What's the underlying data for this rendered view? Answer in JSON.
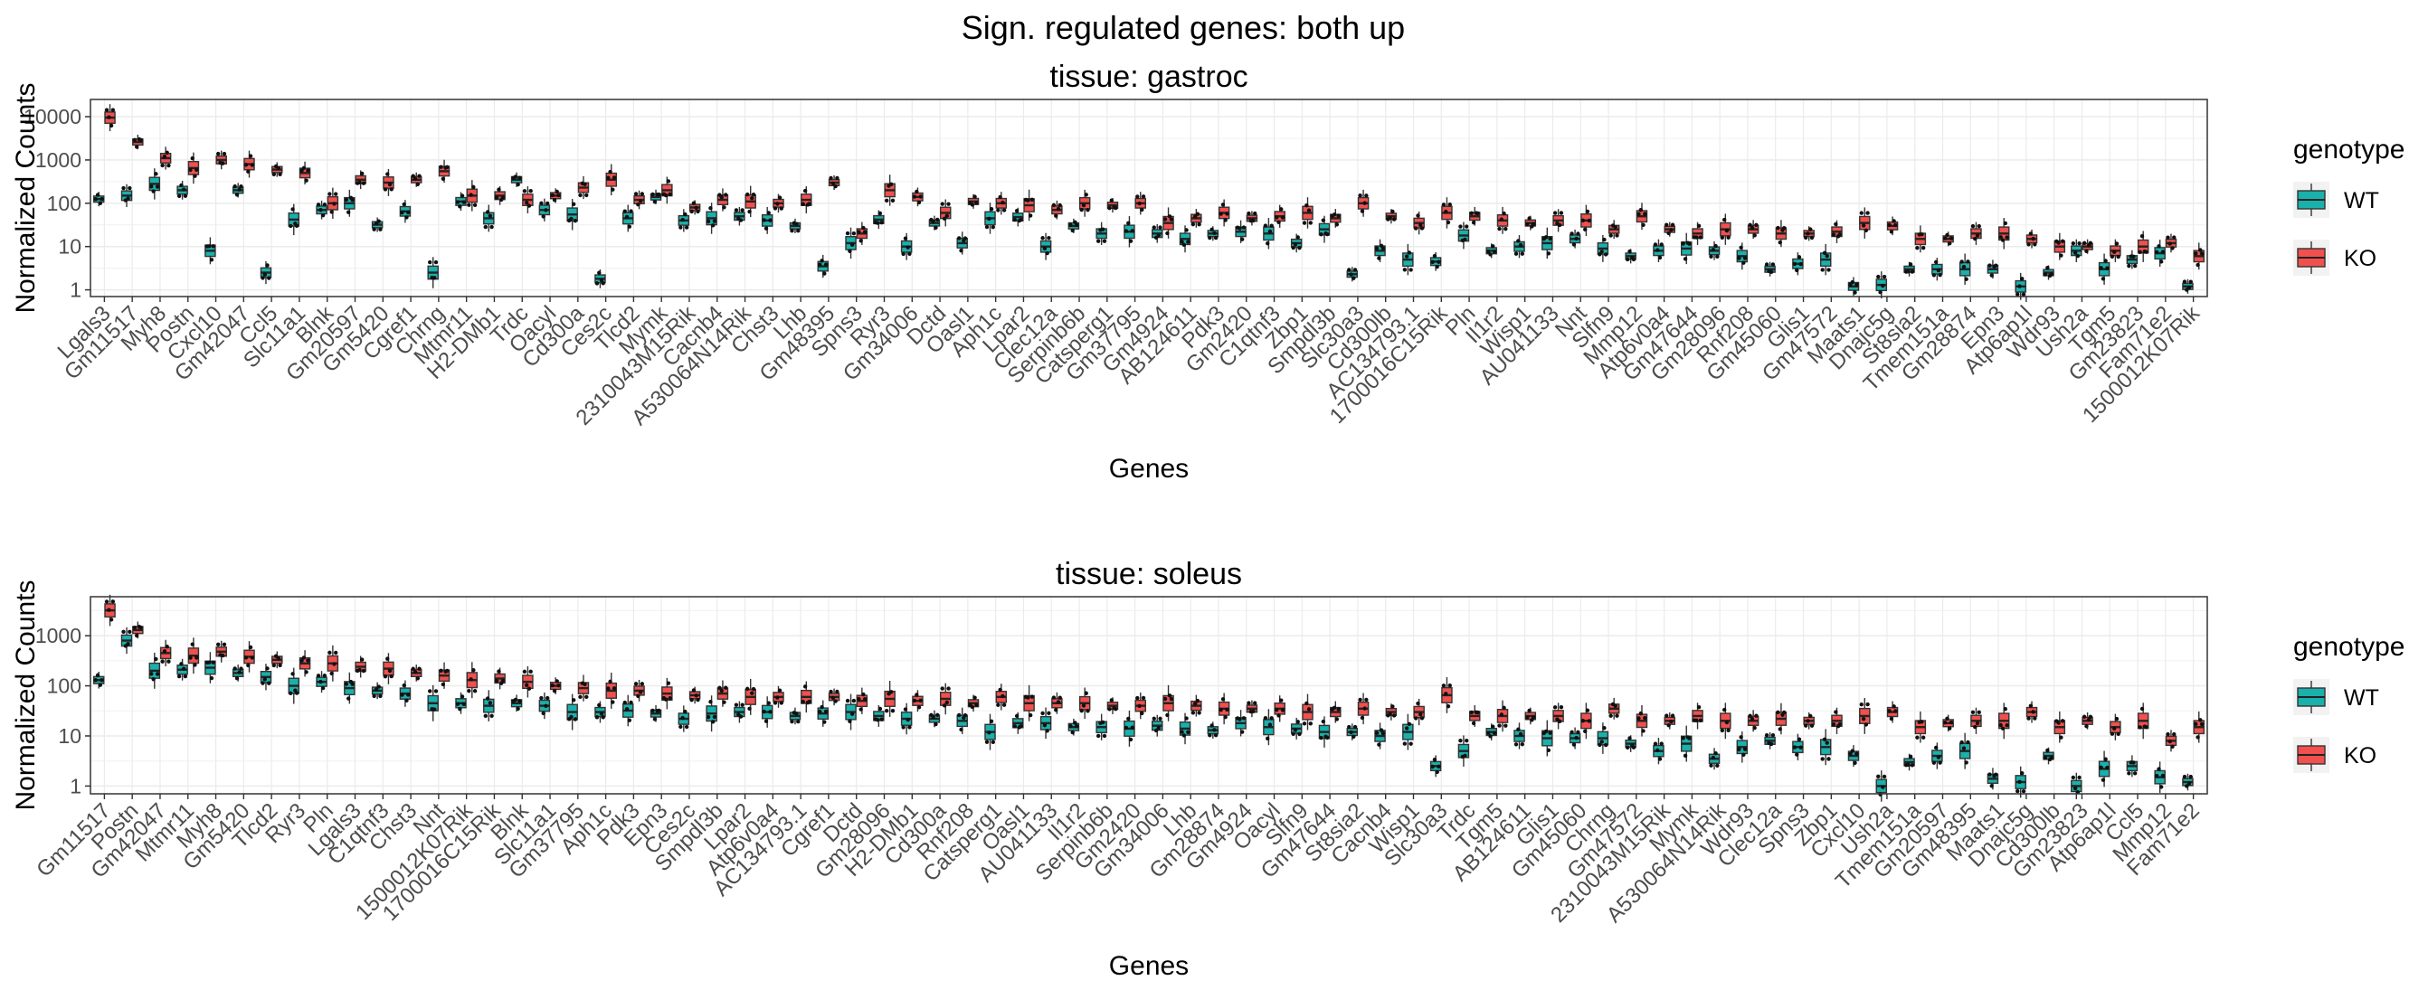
{
  "title": "Sign. regulated genes: both up",
  "legend": {
    "title": "genotype",
    "placement": "right",
    "items": [
      {
        "label": "WT",
        "color": "#1ab0ab"
      },
      {
        "label": "KO",
        "color": "#f0504e"
      }
    ]
  },
  "chart_data": [
    {
      "type": "boxplot",
      "subtitle": "tissue: gastroc",
      "xlabel": "Genes",
      "ylabel": "Normalized Counts",
      "yscale": "log10",
      "ylim": [
        0.7,
        25000
      ],
      "yticks": [
        1,
        10,
        100,
        1000,
        10000
      ],
      "yticklabels": [
        "1",
        "10",
        "100",
        "1000",
        "10000"
      ],
      "grid": true,
      "categories": [
        "Lgals3",
        "Gm11517",
        "Myh8",
        "Postn",
        "Cxcl10",
        "Gm42047",
        "Ccl5",
        "Slc11a1",
        "Blnk",
        "Gm20597",
        "Gm5420",
        "Cgref1",
        "Chrng",
        "Mtmr11",
        "H2-DMb1",
        "Trdc",
        "Oacyl",
        "Cd300a",
        "Ces2c",
        "Tlcd2",
        "Mymk",
        "2310043M15Rik",
        "Cacnb4",
        "A530064N14Rik",
        "Chst3",
        "Lhb",
        "Gm48395",
        "Spns3",
        "Ryr3",
        "Gm34006",
        "Dctd",
        "Oasl1",
        "Aph1c",
        "Lpar2",
        "Clec12a",
        "Serpinb6b",
        "Catsperg1",
        "Gm37795",
        "Gm4924",
        "AB124611",
        "Pdk3",
        "Gm2420",
        "C1qtnf3",
        "Zbp1",
        "Smpdl3b",
        "Slc30a3",
        "Cd300lb",
        "AC134793.1",
        "1700016C15Rik",
        "Pln",
        "Il1r2",
        "Wisp1",
        "AU041133",
        "Nnt",
        "Slfn9",
        "Mmp12",
        "Atp6v0a4",
        "Gm47644",
        "Gm28096",
        "Rnf208",
        "Gm45060",
        "Glis1",
        "Gm47572",
        "Maats1",
        "Dnajc5g",
        "St8sia2",
        "Tmem151a",
        "Gm28874",
        "Epn3",
        "Atp6ap1l",
        "Wdr93",
        "Ush2a",
        "Tgm5",
        "Gm23823",
        "Fam71e2",
        "1500012K07Rik"
      ],
      "series": [
        {
          "name": "WT",
          "values": [
            125,
            150,
            280,
            200,
            8,
            200,
            2.5,
            42,
            70,
            100,
            32,
            65,
            2.5,
            110,
            45,
            350,
            70,
            55,
            1.8,
            45,
            140,
            40,
            45,
            50,
            40,
            30,
            3.5,
            12,
            42,
            10,
            35,
            12,
            45,
            48,
            10,
            30,
            20,
            22,
            20,
            15,
            20,
            22,
            20,
            12,
            25,
            2.3,
            8,
            5,
            4.5,
            18,
            8,
            10,
            12,
            15,
            9,
            6,
            8,
            9,
            8,
            6,
            3,
            4,
            5,
            1.2,
            1.3,
            3,
            3,
            3,
            3,
            1.2,
            2.5,
            8,
            3,
            5,
            7,
            1.2
          ]
        },
        {
          "name": "KO",
          "values": [
            9500,
            2600,
            1100,
            650,
            1000,
            800,
            600,
            500,
            100,
            350,
            300,
            350,
            550,
            150,
            150,
            120,
            150,
            230,
            350,
            120,
            200,
            80,
            120,
            110,
            100,
            120,
            300,
            20,
            200,
            140,
            60,
            110,
            100,
            90,
            70,
            100,
            90,
            100,
            35,
            45,
            60,
            45,
            50,
            60,
            45,
            100,
            50,
            35,
            60,
            50,
            40,
            35,
            40,
            40,
            25,
            50,
            25,
            20,
            25,
            25,
            20,
            20,
            22,
            35,
            30,
            15,
            15,
            20,
            20,
            15,
            10,
            10,
            8,
            10,
            12,
            6
          ]
        }
      ]
    },
    {
      "type": "boxplot",
      "subtitle": "tissue: soleus",
      "xlabel": "Genes",
      "ylabel": "Normalized Counts",
      "yscale": "log10",
      "ylim": [
        0.7,
        6000
      ],
      "yticks": [
        1,
        10,
        100,
        1000
      ],
      "yticklabels": [
        "1",
        "10",
        "100",
        "1000"
      ],
      "grid": true,
      "categories": [
        "Gm11517",
        "Postn",
        "Gm42047",
        "Mtmr11",
        "Myh8",
        "Gm5420",
        "Tlcd2",
        "Ryr3",
        "Pln",
        "Lgals3",
        "C1qtnf3",
        "Chst3",
        "Nnt",
        "1500012K07Rik",
        "1700016C15Rik",
        "Blnk",
        "Slc11a1",
        "Gm37795",
        "Aph1c",
        "Pdk3",
        "Epn3",
        "Ces2c",
        "Smpdl3b",
        "Lpar2",
        "Atp6v0a4",
        "AC134793.1",
        "Cgref1",
        "Dctd",
        "Gm28096",
        "H2-DMb1",
        "Cd300a",
        "Rnf208",
        "Catsperg1",
        "Oasl1",
        "AU041133",
        "Il1r2",
        "Serpinb6b",
        "Gm2420",
        "Gm34006",
        "Lhb",
        "Gm28874",
        "Gm4924",
        "Oacyl",
        "Slfn9",
        "Gm47644",
        "St8sia2",
        "Cacnb4",
        "Wisp1",
        "Slc30a3",
        "Trdc",
        "Tgm5",
        "AB124611",
        "Glis1",
        "Gm45060",
        "Chrng",
        "Gm47572",
        "2310043M15Rik",
        "Mymk",
        "A530064N14Rik",
        "Wdr93",
        "Clec12a",
        "Spns3",
        "Zbp1",
        "Cxcl10",
        "Ush2a",
        "Tmem151a",
        "Gm20597",
        "Gm48395",
        "Maats1",
        "Dnajc5g",
        "Cd300lb",
        "Gm23823",
        "Atp6ap1l",
        "Ccl5",
        "Mmp12",
        "Fam71e2"
      ],
      "series": [
        {
          "name": "WT",
          "values": [
            130,
            800,
            200,
            210,
            230,
            180,
            150,
            100,
            120,
            90,
            80,
            70,
            45,
            45,
            40,
            45,
            40,
            30,
            30,
            32,
            28,
            22,
            28,
            30,
            30,
            25,
            28,
            30,
            25,
            22,
            22,
            20,
            12,
            18,
            18,
            15,
            15,
            14,
            16,
            14,
            13,
            18,
            15,
            14,
            12,
            12,
            10,
            12,
            2.5,
            5,
            12,
            10,
            9,
            9,
            9,
            7,
            5,
            7,
            3.5,
            6,
            8,
            6,
            6,
            4,
            1,
            3,
            4,
            5,
            1.4,
            1.2,
            4,
            1,
            2.2,
            2.5,
            1.5,
            1.2
          ]
        },
        {
          "name": "KO",
          "values": [
            3200,
            1300,
            450,
            400,
            480,
            380,
            330,
            280,
            280,
            240,
            220,
            180,
            160,
            130,
            140,
            120,
            100,
            90,
            80,
            80,
            70,
            65,
            70,
            60,
            60,
            60,
            60,
            50,
            55,
            50,
            55,
            45,
            60,
            45,
            45,
            45,
            40,
            40,
            45,
            40,
            35,
            35,
            35,
            30,
            30,
            35,
            30,
            30,
            65,
            25,
            25,
            25,
            25,
            20,
            35,
            20,
            20,
            25,
            20,
            20,
            22,
            20,
            20,
            25,
            30,
            15,
            18,
            20,
            20,
            30,
            15,
            20,
            15,
            20,
            8,
            15
          ]
        }
      ]
    }
  ]
}
